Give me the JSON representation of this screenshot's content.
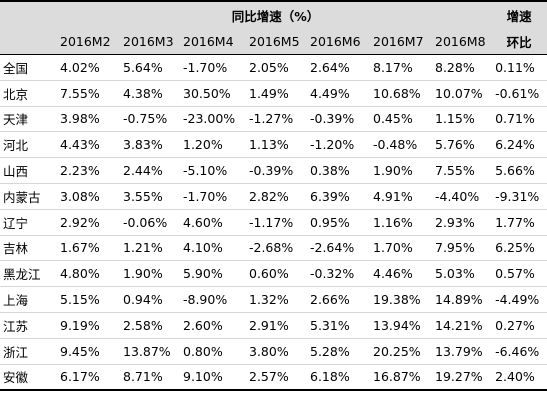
{
  "header": {
    "group_title": "同比增速（%）",
    "mom_title_line1": "增速",
    "mom_title_line2": "环比",
    "months": [
      "2016M2",
      "2016M3",
      "2016M4",
      "2016M5",
      "2016M6",
      "2016M7",
      "2016M8"
    ]
  },
  "rows": [
    {
      "region": "全国",
      "m2": "4.02%",
      "m3": "5.64%",
      "m4": "-1.70%",
      "m5": "2.05%",
      "m6": "2.64%",
      "m7": "8.17%",
      "m8": "8.28%",
      "mom": "0.11%"
    },
    {
      "region": "北京",
      "m2": "7.55%",
      "m3": "4.38%",
      "m4": "30.50%",
      "m5": "1.49%",
      "m6": "4.49%",
      "m7": "10.68%",
      "m8": "10.07%",
      "mom": "-0.61%"
    },
    {
      "region": "天津",
      "m2": "3.98%",
      "m3": "-0.75%",
      "m4": "-23.00%",
      "m5": "-1.27%",
      "m6": "-0.39%",
      "m7": "0.45%",
      "m8": "1.15%",
      "mom": "0.71%"
    },
    {
      "region": "河北",
      "m2": "4.43%",
      "m3": "3.83%",
      "m4": "1.20%",
      "m5": "1.13%",
      "m6": "-1.20%",
      "m7": "-0.48%",
      "m8": "5.76%",
      "mom": "6.24%"
    },
    {
      "region": "山西",
      "m2": "2.23%",
      "m3": "2.44%",
      "m4": "-5.10%",
      "m5": "-0.39%",
      "m6": "0.38%",
      "m7": "1.90%",
      "m8": "7.55%",
      "mom": "5.66%"
    },
    {
      "region": "内蒙古",
      "m2": "3.08%",
      "m3": "3.55%",
      "m4": "-1.70%",
      "m5": "2.82%",
      "m6": "6.39%",
      "m7": "4.91%",
      "m8": "-4.40%",
      "mom": "-9.31%"
    },
    {
      "region": "辽宁",
      "m2": "2.92%",
      "m3": "-0.06%",
      "m4": "4.60%",
      "m5": "-1.17%",
      "m6": "0.95%",
      "m7": "1.16%",
      "m8": "2.93%",
      "mom": "1.77%"
    },
    {
      "region": "吉林",
      "m2": "1.67%",
      "m3": "1.21%",
      "m4": "4.10%",
      "m5": "-2.68%",
      "m6": "-2.64%",
      "m7": "1.70%",
      "m8": "7.95%",
      "mom": "6.25%"
    },
    {
      "region": "黑龙江",
      "m2": "4.80%",
      "m3": "1.90%",
      "m4": "5.90%",
      "m5": "0.60%",
      "m6": "-0.32%",
      "m7": "4.46%",
      "m8": "5.03%",
      "mom": "0.57%"
    },
    {
      "region": "上海",
      "m2": "5.15%",
      "m3": "0.94%",
      "m4": "-8.90%",
      "m5": "1.32%",
      "m6": "2.66%",
      "m7": "19.38%",
      "m8": "14.89%",
      "mom": "-4.49%"
    },
    {
      "region": "江苏",
      "m2": "9.19%",
      "m3": "2.58%",
      "m4": "2.60%",
      "m5": "2.91%",
      "m6": "5.31%",
      "m7": "13.94%",
      "m8": "14.21%",
      "mom": "0.27%"
    },
    {
      "region": "浙江",
      "m2": "9.45%",
      "m3": "13.87%",
      "m4": "0.80%",
      "m5": "3.80%",
      "m6": "5.28%",
      "m7": "20.25%",
      "m8": "13.79%",
      "mom": "-6.46%"
    },
    {
      "region": "安徽",
      "m2": "6.17%",
      "m3": "8.71%",
      "m4": "9.10%",
      "m5": "2.57%",
      "m6": "6.18%",
      "m7": "16.87%",
      "m8": "19.27%",
      "mom": "2.40%"
    }
  ]
}
